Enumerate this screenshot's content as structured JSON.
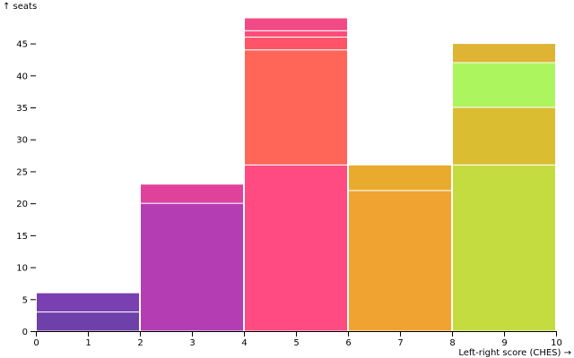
{
  "chart_data": {
    "type": "bar",
    "subtype": "stacked-histogram",
    "title": "",
    "xlabel": "Left-right score (CHES) →",
    "ylabel": "↑ seats",
    "xlim": [
      0,
      10
    ],
    "ylim": [
      0,
      49
    ],
    "x_ticks": [
      0,
      1,
      2,
      3,
      4,
      5,
      6,
      7,
      8,
      9,
      10
    ],
    "y_ticks": [
      0,
      5,
      10,
      15,
      20,
      25,
      30,
      35,
      40,
      45
    ],
    "grid": false,
    "legend": "none",
    "bins": [
      {
        "x0": 0,
        "x1": 2,
        "segments": [
          {
            "value": 3,
            "color": "#6e40aa"
          },
          {
            "value": 3,
            "color": "#7a3fb0"
          }
        ]
      },
      {
        "x0": 2,
        "x1": 4,
        "segments": [
          {
            "value": 20,
            "color": "#b43db4"
          },
          {
            "value": 3,
            "color": "#e0429b"
          }
        ]
      },
      {
        "x0": 4,
        "x1": 6,
        "segments": [
          {
            "value": 26,
            "color": "#ff4a82"
          },
          {
            "value": 18,
            "color": "#ff6657"
          },
          {
            "value": 2,
            "color": "#ff5468"
          },
          {
            "value": 1,
            "color": "#ff4b77"
          },
          {
            "value": 2,
            "color": "#f24a86"
          }
        ]
      },
      {
        "x0": 6,
        "x1": 8,
        "segments": [
          {
            "value": 22,
            "color": "#f0a330"
          },
          {
            "value": 4,
            "color": "#e8ab2e"
          }
        ]
      },
      {
        "x0": 8,
        "x1": 10,
        "segments": [
          {
            "value": 26,
            "color": "#c4dc40"
          },
          {
            "value": 9,
            "color": "#dbbd32"
          },
          {
            "value": 7,
            "color": "#adf55e"
          },
          {
            "value": 3,
            "color": "#dfb434"
          }
        ]
      }
    ]
  }
}
